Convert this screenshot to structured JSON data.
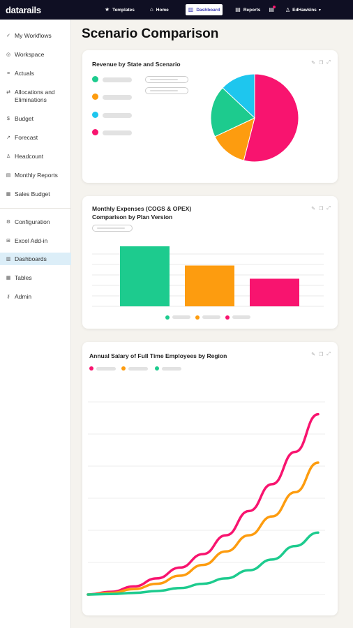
{
  "app": {
    "logo": "datarails"
  },
  "topnav": {
    "items": [
      {
        "icon": "★",
        "label": "Templates"
      },
      {
        "icon": "⌂",
        "label": "Home"
      },
      {
        "icon": "▥",
        "label": "Dashboard",
        "active": true
      },
      {
        "icon": "▤",
        "label": "Reports"
      }
    ],
    "user": "EdHawkins"
  },
  "sidebar": {
    "items": [
      {
        "icon": "✓",
        "label": "My Workflows"
      },
      {
        "icon": "◎",
        "label": "Workspace"
      },
      {
        "icon": "≡",
        "label": "Actuals"
      },
      {
        "icon": "⇄",
        "label": "Allocations and Eliminations"
      },
      {
        "icon": "$",
        "label": "Budget"
      },
      {
        "icon": "↗",
        "label": "Forecast"
      },
      {
        "icon": "♙",
        "label": "Headcount"
      },
      {
        "icon": "▤",
        "label": "Monthly Reports"
      },
      {
        "icon": "▦",
        "label": "Sales Budget"
      },
      {
        "icon": "⚙",
        "label": "Configuration"
      },
      {
        "icon": "⊞",
        "label": "Excel Add-in"
      },
      {
        "icon": "▥",
        "label": "Dashboards",
        "active": true
      },
      {
        "icon": "▦",
        "label": "Tables"
      },
      {
        "icon": "⚷",
        "label": "Admin"
      }
    ]
  },
  "page": {
    "title": "Scenario Comparison"
  },
  "colors": {
    "green": "#1dcb8e",
    "orange": "#fd9c0f",
    "cyan": "#1ec6ee",
    "pink": "#f8146f",
    "navy": "#0f0f23"
  },
  "cards": {
    "revenue": {
      "title": "Revenue by State and Scenario"
    },
    "expenses": {
      "title_line1": "Monthly Expenses (COGS & OPEX)",
      "title_line2": "Comparison by Plan Version"
    },
    "salary": {
      "title": "Annual Salary of Full Time Employees by Region"
    }
  },
  "chart_data": [
    {
      "type": "pie",
      "title": "Revenue by State and Scenario",
      "slices": [
        {
          "color": "#f8146f",
          "value": 54
        },
        {
          "color": "#fd9c0f",
          "value": 14
        },
        {
          "color": "#1dcb8e",
          "value": 19
        },
        {
          "color": "#1ec6ee",
          "value": 13
        }
      ]
    },
    {
      "type": "bar",
      "title": "Monthly Expenses (COGS & OPEX) Comparison by Plan Version",
      "values": [
        100,
        68,
        46
      ],
      "colors": [
        "#1dcb8e",
        "#fd9c0f",
        "#f8146f"
      ]
    },
    {
      "type": "line",
      "title": "Annual Salary of Full Time Employees by Region",
      "series": [
        {
          "color": "#f8146f",
          "values": [
            0,
            1,
            3,
            6,
            10,
            15,
            22,
            31,
            41,
            53,
            67
          ]
        },
        {
          "color": "#fd9c0f",
          "values": [
            0,
            0.6,
            2,
            4,
            7,
            11,
            16,
            22,
            29,
            38,
            49
          ]
        },
        {
          "color": "#1dcb8e",
          "values": [
            0,
            0.2,
            0.6,
            1.3,
            2.4,
            4,
            6,
            9,
            13,
            18,
            23
          ]
        }
      ]
    }
  ]
}
